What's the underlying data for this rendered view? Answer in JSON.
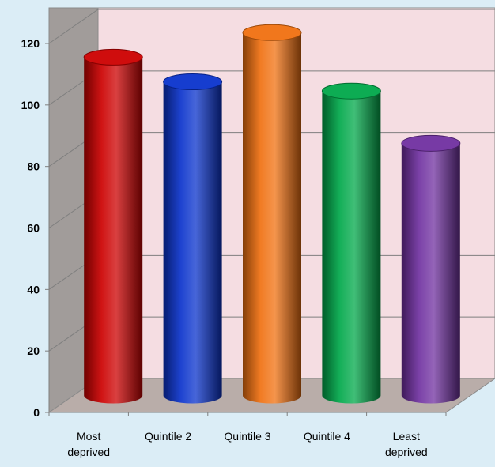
{
  "chart_data": {
    "type": "bar",
    "style": "3d-cylinder",
    "title": "",
    "xlabel": "",
    "ylabel": "",
    "categories": [
      [
        "Most",
        "deprived"
      ],
      [
        "Quintile 2"
      ],
      [
        "Quintile 3"
      ],
      [
        "Quintile 4"
      ],
      [
        "Least",
        "deprived"
      ]
    ],
    "values": [
      110,
      102,
      118,
      99,
      82
    ],
    "colors": [
      "#cc0000",
      "#0a33cc",
      "#f07010",
      "#00a84a",
      "#7030a0"
    ],
    "ylim": [
      0,
      120
    ],
    "yticks": [
      0,
      20,
      40,
      60,
      80,
      100,
      120
    ],
    "grid": true,
    "legend": "none",
    "back_wall_color": "#f5dde2",
    "side_wall_color": "#a19c9a",
    "floor_color": "#b9ada9"
  }
}
